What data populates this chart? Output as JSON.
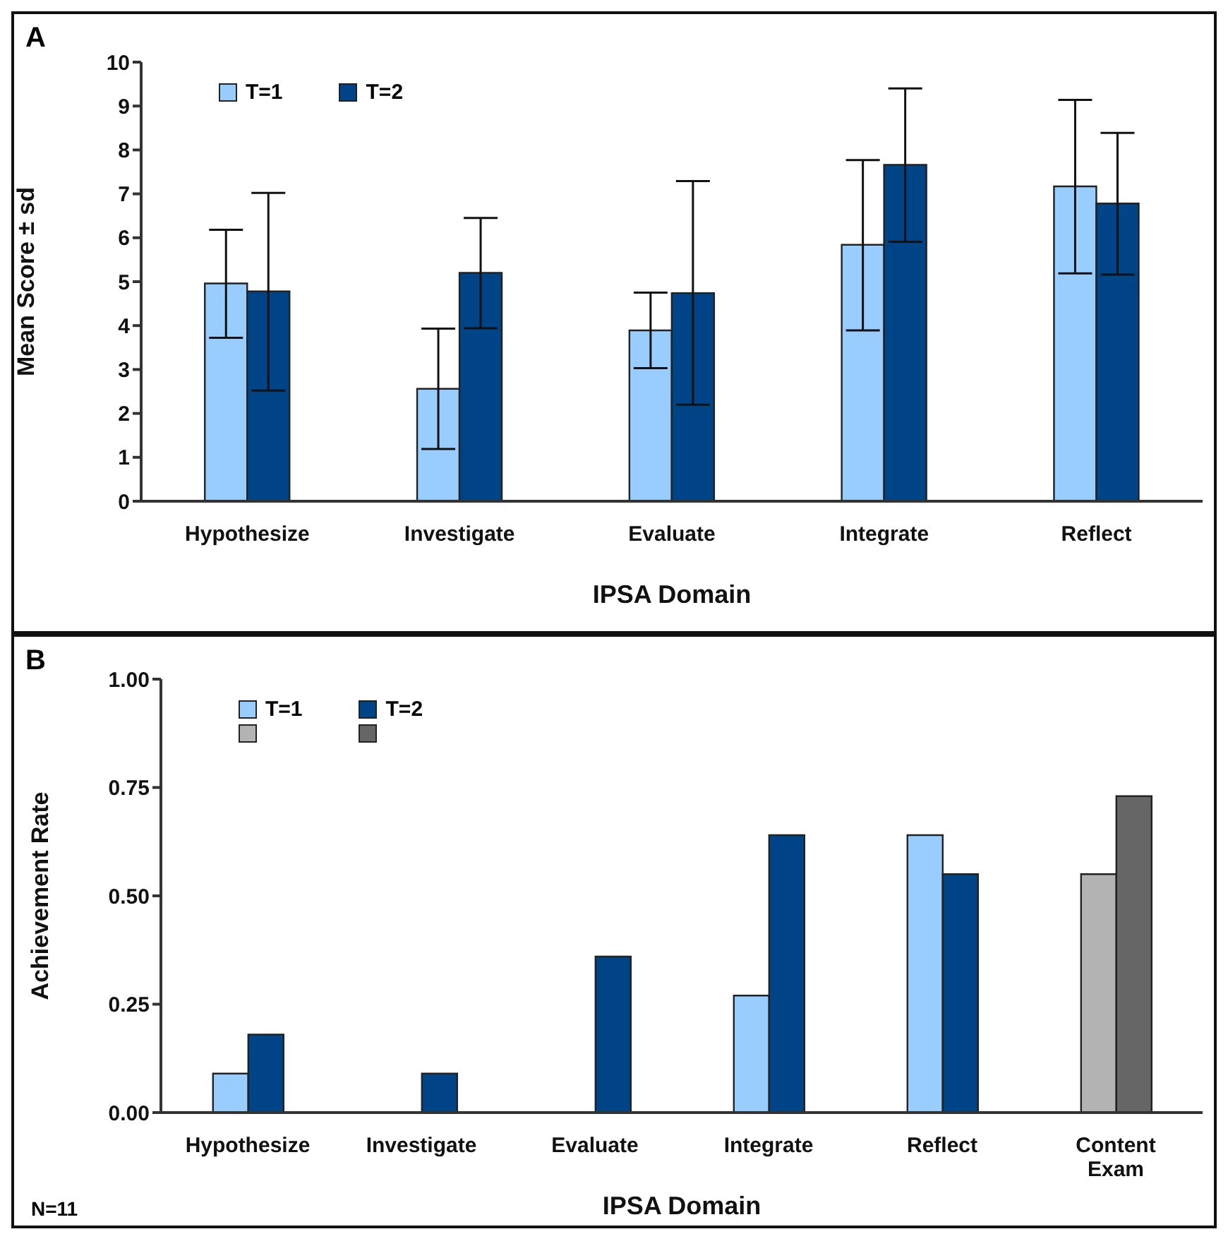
{
  "chart_data": [
    {
      "type": "bar",
      "annotations": [
        "A"
      ],
      "xlabel": "IPSA Domain",
      "ylabel": "Mean Score ± sd",
      "categories": [
        "Hypothesize",
        "Investigate",
        "Evaluate",
        "Integrate",
        "Reflect"
      ],
      "series": [
        {
          "name": "T=1",
          "color": "#99ccff",
          "values": [
            4.96,
            2.56,
            3.89,
            5.84,
            7.17
          ],
          "errors": [
            [
              3.72,
              6.18
            ],
            [
              1.19,
              3.93
            ],
            [
              3.03,
              4.75
            ],
            [
              3.89,
              7.77
            ],
            [
              5.19,
              9.14
            ]
          ]
        },
        {
          "name": "T=2",
          "color": "#004488",
          "values": [
            4.78,
            5.2,
            4.74,
            7.66,
            6.78
          ],
          "errors": [
            [
              2.52,
              7.02
            ],
            [
              3.94,
              6.45
            ],
            [
              2.2,
              7.29
            ],
            [
              5.91,
              9.4
            ],
            [
              5.16,
              8.39
            ]
          ]
        }
      ],
      "ylim": [
        0,
        10
      ],
      "yticks": [
        0,
        1,
        2,
        3,
        4,
        5,
        6,
        7,
        8,
        9,
        10
      ],
      "legend": "top left"
    },
    {
      "type": "bar",
      "annotations": [
        "B",
        "N=11"
      ],
      "xlabel": "IPSA Domain",
      "ylabel": "Achievement Rate",
      "categories": [
        "Hypothesize",
        "Investigate",
        "Evaluate",
        "Integrate",
        "Reflect",
        "Content\nExam"
      ],
      "series": [
        {
          "name": "T=1",
          "colors": [
            "#99ccff",
            "#99ccff",
            "#99ccff",
            "#99ccff",
            "#99ccff",
            "#b3b3b3"
          ],
          "values": [
            0.09,
            null,
            null,
            0.27,
            0.64,
            0.55
          ]
        },
        {
          "name": "T=2",
          "colors": [
            "#004488",
            "#004488",
            "#004488",
            "#004488",
            "#004488",
            "#666666"
          ],
          "values": [
            0.18,
            0.09,
            0.36,
            0.64,
            0.55,
            0.73
          ]
        }
      ],
      "ylim": [
        0,
        1
      ],
      "yticks": [
        {
          "value": 0,
          "label": "0.00"
        },
        {
          "value": 0.25,
          "label": "0.25"
        },
        {
          "value": 0.5,
          "label": "0.50"
        },
        {
          "value": 0.75,
          "label": "0.75"
        },
        {
          "value": 1,
          "label": "1.00"
        }
      ],
      "legend": "top left"
    }
  ]
}
